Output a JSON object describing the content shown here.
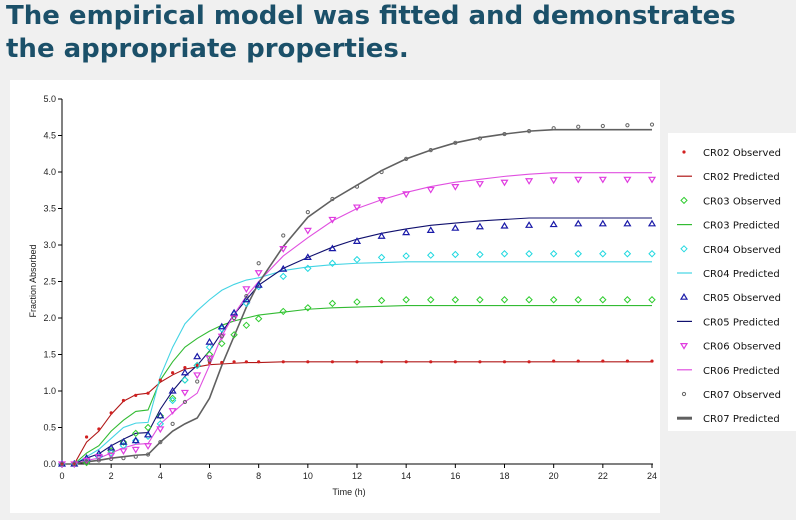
{
  "slide": {
    "title_line1": "The empirical model was fitted and demonstrates",
    "title_line2": "the appropriate properties."
  },
  "chart_data": {
    "type": "scatter",
    "title": "",
    "xlabel": "Time (h)",
    "ylabel": "Fraction Absorbed",
    "xlim": [
      0,
      24
    ],
    "ylim": [
      0,
      5
    ],
    "xticks": [
      "0",
      "2",
      "4",
      "6",
      "8",
      "10",
      "12",
      "14",
      "16",
      "18",
      "20",
      "22",
      "24"
    ],
    "yticks": [
      "0.0",
      "0.5",
      "1.0",
      "1.5",
      "2.0",
      "2.5",
      "3.0",
      "3.5",
      "4.0",
      "4.5",
      "5.0"
    ],
    "grid": false,
    "legend_position": "right",
    "x": [
      0,
      0.5,
      1,
      1.5,
      2,
      2.5,
      3,
      3.5,
      4,
      4.5,
      5,
      5.5,
      6,
      6.5,
      7,
      7.5,
      8,
      9,
      10,
      11,
      12,
      13,
      14,
      15,
      16,
      17,
      18,
      19,
      20,
      21,
      22,
      23,
      24
    ],
    "series": [
      {
        "name": "CR02 Observed",
        "kind": "observed",
        "marker": "dot",
        "color": "#d22020",
        "values": [
          0,
          0,
          0.37,
          0.48,
          0.7,
          0.87,
          0.94,
          0.97,
          1.15,
          1.25,
          1.32,
          1.36,
          1.39,
          1.39,
          1.4,
          1.4,
          1.4,
          1.4,
          1.4,
          1.4,
          1.4,
          1.4,
          1.4,
          1.4,
          1.4,
          1.4,
          1.4,
          1.4,
          1.41,
          1.41,
          1.41,
          1.41,
          1.41
        ]
      },
      {
        "name": "CR02 Predicted",
        "kind": "predicted",
        "color": "#b01818",
        "values": [
          0,
          0,
          0.3,
          0.45,
          0.68,
          0.86,
          0.95,
          0.97,
          1.12,
          1.22,
          1.3,
          1.33,
          1.36,
          1.37,
          1.38,
          1.39,
          1.39,
          1.4,
          1.4,
          1.4,
          1.4,
          1.4,
          1.4,
          1.4,
          1.4,
          1.4,
          1.4,
          1.4,
          1.4,
          1.4,
          1.4,
          1.4,
          1.4
        ]
      },
      {
        "name": "CR03 Observed",
        "kind": "observed",
        "marker": "diamond",
        "color": "#2ecc2e",
        "values": [
          0,
          0,
          0.02,
          0.1,
          0.18,
          0.3,
          0.42,
          0.5,
          0.66,
          0.9,
          1.15,
          1.35,
          1.5,
          1.65,
          1.77,
          1.9,
          1.99,
          2.09,
          2.14,
          2.2,
          2.22,
          2.24,
          2.25,
          2.25,
          2.25,
          2.25,
          2.25,
          2.25,
          2.25,
          2.25,
          2.25,
          2.25,
          2.25
        ]
      },
      {
        "name": "CR03 Predicted",
        "kind": "predicted",
        "color": "#33bb33",
        "values": [
          0,
          0,
          0.15,
          0.25,
          0.45,
          0.6,
          0.72,
          0.74,
          1.15,
          1.4,
          1.6,
          1.72,
          1.82,
          1.9,
          1.96,
          2.0,
          2.04,
          2.08,
          2.12,
          2.14,
          2.15,
          2.16,
          2.17,
          2.17,
          2.17,
          2.17,
          2.17,
          2.17,
          2.17,
          2.17,
          2.17,
          2.17,
          2.17
        ]
      },
      {
        "name": "CR04 Observed",
        "kind": "observed",
        "marker": "diamond",
        "color": "#22d8e0",
        "values": [
          0,
          0,
          0.05,
          0.1,
          0.15,
          0.25,
          0.32,
          0.38,
          0.55,
          0.87,
          1.15,
          1.35,
          1.6,
          1.85,
          2.05,
          2.2,
          2.43,
          2.57,
          2.68,
          2.75,
          2.8,
          2.83,
          2.85,
          2.86,
          2.87,
          2.87,
          2.88,
          2.88,
          2.88,
          2.88,
          2.88,
          2.88,
          2.88
        ]
      },
      {
        "name": "CR04 Predicted",
        "kind": "predicted",
        "color": "#44d4e4",
        "values": [
          0,
          0,
          0.1,
          0.2,
          0.35,
          0.5,
          0.56,
          0.57,
          1.2,
          1.6,
          1.92,
          2.1,
          2.25,
          2.38,
          2.46,
          2.52,
          2.55,
          2.65,
          2.7,
          2.73,
          2.75,
          2.76,
          2.77,
          2.77,
          2.77,
          2.77,
          2.77,
          2.77,
          2.77,
          2.77,
          2.77,
          2.77,
          2.77
        ]
      },
      {
        "name": "CR05 Observed",
        "kind": "observed",
        "marker": "triangle-up",
        "color": "#1a1aa8",
        "values": [
          0,
          0,
          0.08,
          0.14,
          0.22,
          0.3,
          0.32,
          0.4,
          0.66,
          1.0,
          1.25,
          1.47,
          1.67,
          1.88,
          2.07,
          2.25,
          2.45,
          2.67,
          2.83,
          2.95,
          3.05,
          3.12,
          3.17,
          3.2,
          3.23,
          3.25,
          3.26,
          3.27,
          3.28,
          3.29,
          3.29,
          3.29,
          3.29
        ]
      },
      {
        "name": "CR05 Predicted",
        "kind": "predicted",
        "color": "#10106e",
        "values": [
          0,
          0,
          0.08,
          0.14,
          0.25,
          0.34,
          0.42,
          0.43,
          0.75,
          1.0,
          1.2,
          1.35,
          1.55,
          1.8,
          2.05,
          2.25,
          2.45,
          2.68,
          2.83,
          2.97,
          3.08,
          3.16,
          3.22,
          3.27,
          3.3,
          3.33,
          3.35,
          3.37,
          3.37,
          3.37,
          3.37,
          3.37,
          3.37
        ]
      },
      {
        "name": "CR06 Observed",
        "kind": "observed",
        "marker": "triangle-down",
        "color": "#e03ce0",
        "values": [
          0,
          0,
          0.05,
          0.1,
          0.12,
          0.18,
          0.2,
          0.25,
          0.48,
          0.73,
          0.98,
          1.22,
          1.45,
          1.75,
          2.0,
          2.4,
          2.62,
          2.95,
          3.2,
          3.35,
          3.52,
          3.62,
          3.7,
          3.76,
          3.8,
          3.84,
          3.86,
          3.88,
          3.89,
          3.9,
          3.9,
          3.9,
          3.9
        ]
      },
      {
        "name": "CR06 Predicted",
        "kind": "predicted",
        "color": "#e050e0",
        "values": [
          0,
          0,
          0.05,
          0.08,
          0.15,
          0.22,
          0.27,
          0.28,
          0.55,
          0.7,
          0.85,
          0.97,
          1.35,
          1.75,
          2.05,
          2.3,
          2.5,
          2.85,
          3.1,
          3.33,
          3.5,
          3.62,
          3.72,
          3.8,
          3.86,
          3.9,
          3.94,
          3.97,
          3.99,
          3.99,
          3.99,
          3.99,
          3.99
        ]
      },
      {
        "name": "CR07 Observed",
        "kind": "observed",
        "marker": "circle",
        "color": "#666666",
        "values": [
          0,
          0,
          0.03,
          0.05,
          0.07,
          0.08,
          0.1,
          0.13,
          0.3,
          0.55,
          0.85,
          1.13,
          1.42,
          1.75,
          2.0,
          2.3,
          2.75,
          3.13,
          3.45,
          3.63,
          3.8,
          4.0,
          4.18,
          4.3,
          4.4,
          4.46,
          4.52,
          4.56,
          4.6,
          4.62,
          4.63,
          4.64,
          4.65
        ]
      },
      {
        "name": "CR07 Predicted",
        "kind": "predicted",
        "color": "#606060",
        "values": [
          0,
          0,
          0.03,
          0.05,
          0.08,
          0.1,
          0.12,
          0.13,
          0.3,
          0.45,
          0.55,
          0.63,
          0.9,
          1.35,
          1.75,
          2.15,
          2.48,
          2.98,
          3.38,
          3.62,
          3.82,
          4.02,
          4.18,
          4.3,
          4.4,
          4.47,
          4.52,
          4.56,
          4.58,
          4.58,
          4.58,
          4.58,
          4.58
        ]
      }
    ]
  }
}
